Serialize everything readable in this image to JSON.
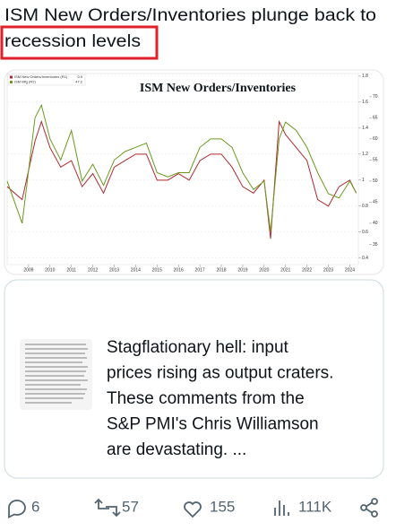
{
  "post": {
    "text_before": "ISM New Orders/Inventories plunge back to",
    "text_highlighted": "recession levels"
  },
  "chart_data": {
    "type": "line",
    "title": "ISM New Orders/Inventories",
    "x": [
      2008,
      2008.7,
      2009.3,
      2009.6,
      2010,
      2010.5,
      2011,
      2011.5,
      2012,
      2012.5,
      2013,
      2013.5,
      2014,
      2014.5,
      2015,
      2015.5,
      2016,
      2016.5,
      2017,
      2017.5,
      2018,
      2018.5,
      2019,
      2019.5,
      2020,
      2020.3,
      2020.7,
      2021,
      2021.5,
      2022,
      2022.5,
      2023,
      2023.5,
      2024,
      2024.3
    ],
    "series": [
      {
        "name": "ISM New Orders/Inventories (R1)",
        "latest": 0.9,
        "color": "#b0282e",
        "axis": "y",
        "values": [
          0.95,
          0.85,
          1.3,
          1.45,
          1.25,
          1.1,
          1.15,
          0.95,
          1.05,
          0.9,
          1.1,
          1.15,
          1.2,
          1.2,
          1.0,
          1.0,
          1.05,
          1.0,
          1.15,
          1.2,
          1.2,
          1.1,
          0.95,
          0.9,
          1.0,
          0.55,
          1.45,
          1.35,
          1.25,
          1.15,
          0.85,
          0.8,
          0.95,
          1.0,
          0.9
        ]
      },
      {
        "name": "ISM Mfg (R2)",
        "latest": 47.2,
        "color": "#6a9a1f",
        "axis": "y2",
        "values": [
          50,
          40,
          65,
          68,
          60,
          55,
          62,
          50,
          54,
          49,
          55,
          57,
          58,
          59,
          52,
          51,
          52,
          52,
          58,
          60,
          60,
          58,
          52,
          48,
          50,
          38,
          60,
          64,
          62,
          58,
          52,
          47,
          46,
          50,
          47.2
        ]
      }
    ],
    "xlim": [
      2008,
      2024.4
    ],
    "xticks": [
      2009,
      2010,
      2011,
      2012,
      2013,
      2014,
      2015,
      2016,
      2017,
      2018,
      2019,
      2020,
      2021,
      2022,
      2023,
      2024
    ],
    "ylim": [
      0.35,
      1.82
    ],
    "yticks": [
      0.4,
      0.6,
      0.8,
      1.0,
      1.2,
      1.4,
      1.6,
      1.8
    ],
    "y2lim": [
      30.2,
      75.5
    ],
    "y2ticks": [
      35,
      40,
      45,
      50,
      55,
      60,
      65,
      70
    ],
    "grid": true
  },
  "quote": {
    "lines": [
      "Stagflationary hell: input",
      "prices rising as output craters.",
      "These comments from the",
      "S&P PMI's Chris Williamson",
      "are devastating.  ..."
    ]
  },
  "actions": {
    "replies": 6,
    "reposts": 57,
    "likes": 155,
    "views": "111K"
  }
}
